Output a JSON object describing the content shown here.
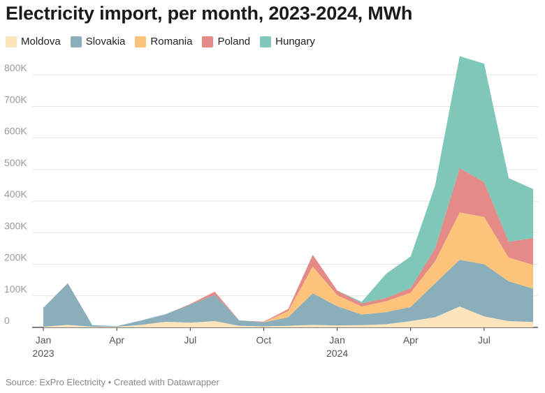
{
  "chart_data": {
    "type": "area",
    "stacked": true,
    "title": "Electricity import, per month, 2023-2024, MWh",
    "xlabel": "",
    "ylabel": "",
    "ylim": [
      0,
      860000
    ],
    "y_ticks": [
      {
        "value": 0,
        "label": "0"
      },
      {
        "value": 100000,
        "label": "100K"
      },
      {
        "value": 200000,
        "label": "200K"
      },
      {
        "value": 300000,
        "label": "300K"
      },
      {
        "value": 400000,
        "label": "400K"
      },
      {
        "value": 500000,
        "label": "500K"
      },
      {
        "value": 600000,
        "label": "600K"
      },
      {
        "value": 700000,
        "label": "700K"
      },
      {
        "value": 800000,
        "label": "800K"
      }
    ],
    "x_ticks": [
      {
        "index": 0,
        "label": "Jan",
        "sublabel": "2023"
      },
      {
        "index": 3,
        "label": "Apr",
        "sublabel": ""
      },
      {
        "index": 6,
        "label": "Jul",
        "sublabel": ""
      },
      {
        "index": 9,
        "label": "Oct",
        "sublabel": ""
      },
      {
        "index": 12,
        "label": "Jan",
        "sublabel": "2024"
      },
      {
        "index": 15,
        "label": "Apr",
        "sublabel": ""
      },
      {
        "index": 18,
        "label": "Jul",
        "sublabel": ""
      }
    ],
    "categories": [
      "Jan 2023",
      "Feb 2023",
      "Mar 2023",
      "Apr 2023",
      "May 2023",
      "Jun 2023",
      "Jul 2023",
      "Aug 2023",
      "Sep 2023",
      "Oct 2023",
      "Nov 2023",
      "Dec 2023",
      "Jan 2024",
      "Feb 2024",
      "Mar 2024",
      "Apr 2024",
      "May 2024",
      "Jun 2024",
      "Jul 2024",
      "Aug 2024",
      "Sep 2024"
    ],
    "series": [
      {
        "name": "Moldova",
        "color": "#fde4bd",
        "values": [
          2000,
          8000,
          2000,
          2000,
          8000,
          18000,
          15000,
          20000,
          5000,
          3000,
          5000,
          8000,
          6000,
          7000,
          10000,
          20000,
          32000,
          66000,
          35000,
          20000,
          17000
        ]
      },
      {
        "name": "Slovakia",
        "color": "#8aaeba",
        "values": [
          60000,
          132000,
          5000,
          2000,
          14000,
          24000,
          57000,
          83000,
          17000,
          13000,
          27000,
          100000,
          61000,
          34000,
          38000,
          45000,
          108000,
          148000,
          165000,
          126000,
          106000
        ]
      },
      {
        "name": "Romania",
        "color": "#fbc47a",
        "values": [
          0,
          0,
          0,
          0,
          0,
          0,
          0,
          0,
          0,
          0,
          20000,
          85000,
          35000,
          25000,
          35000,
          45000,
          70000,
          150000,
          150000,
          75000,
          75000
        ]
      },
      {
        "name": "Poland",
        "color": "#e48a87",
        "values": [
          0,
          0,
          0,
          0,
          0,
          0,
          2000,
          10000,
          0,
          2000,
          6000,
          37000,
          15000,
          10000,
          10000,
          15000,
          40000,
          140000,
          110000,
          50000,
          85000
        ]
      },
      {
        "name": "Hungary",
        "color": "#7fc7b8",
        "values": [
          0,
          0,
          0,
          0,
          0,
          0,
          0,
          0,
          0,
          0,
          0,
          0,
          0,
          5000,
          77000,
          100000,
          200000,
          355000,
          375000,
          202000,
          155000
        ]
      }
    ],
    "legend_position": "top-left",
    "grid": true
  },
  "source": "Source: ExPro Electricity • Created with Datawrapper"
}
